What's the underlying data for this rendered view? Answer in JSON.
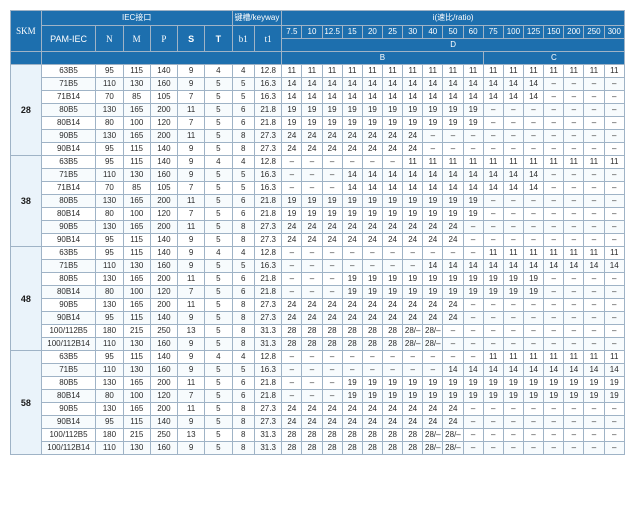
{
  "header": {
    "skm": "SKM",
    "iec": "IEC接口",
    "keyway": "键槽/keyway",
    "ratio_title": "i(速比/ratio)",
    "cols": [
      "PAM-IEC",
      "N",
      "M",
      "P",
      "S",
      "T",
      "b1",
      "t1"
    ],
    "ratios": [
      "7.5",
      "10",
      "12.5",
      "15",
      "20",
      "25",
      "30",
      "40",
      "50",
      "60",
      "75",
      "100",
      "125",
      "150",
      "200",
      "250",
      "300"
    ],
    "group_D": "D",
    "group_B": "B",
    "group_C": "C"
  },
  "groups": [
    {
      "skm": "28",
      "rows": [
        [
          "63B5",
          "95",
          "115",
          "140",
          "9",
          "4",
          "4",
          "12.8",
          "11",
          "11",
          "11",
          "11",
          "11",
          "11",
          "11",
          "11",
          "11",
          "11",
          "11",
          "11",
          "11",
          "11",
          "11",
          "11",
          "11"
        ],
        [
          "71B5",
          "110",
          "130",
          "160",
          "9",
          "5",
          "5",
          "16.3",
          "14",
          "14",
          "14",
          "14",
          "14",
          "14",
          "14",
          "14",
          "14",
          "14",
          "14",
          "14",
          "14",
          "–",
          "–",
          "–",
          "–"
        ],
        [
          "71B14",
          "70",
          "85",
          "105",
          "7",
          "5",
          "5",
          "16.3",
          "14",
          "14",
          "14",
          "14",
          "14",
          "14",
          "14",
          "14",
          "14",
          "14",
          "14",
          "14",
          "14",
          "–",
          "–",
          "–",
          "–"
        ],
        [
          "80B5",
          "130",
          "165",
          "200",
          "11",
          "5",
          "6",
          "21.8",
          "19",
          "19",
          "19",
          "19",
          "19",
          "19",
          "19",
          "19",
          "19",
          "19",
          "–",
          "–",
          "–",
          "–",
          "–",
          "–",
          "–"
        ],
        [
          "80B14",
          "80",
          "100",
          "120",
          "7",
          "5",
          "6",
          "21.8",
          "19",
          "19",
          "19",
          "19",
          "19",
          "19",
          "19",
          "19",
          "19",
          "19",
          "–",
          "–",
          "–",
          "–",
          "–",
          "–",
          "–"
        ],
        [
          "90B5",
          "130",
          "165",
          "200",
          "11",
          "5",
          "8",
          "27.3",
          "24",
          "24",
          "24",
          "24",
          "24",
          "24",
          "24",
          "–",
          "–",
          "–",
          "–",
          "–",
          "–",
          "–",
          "–",
          "–",
          "–"
        ],
        [
          "90B14",
          "95",
          "115",
          "140",
          "9",
          "5",
          "8",
          "27.3",
          "24",
          "24",
          "24",
          "24",
          "24",
          "24",
          "24",
          "–",
          "–",
          "–",
          "–",
          "–",
          "–",
          "–",
          "–",
          "–",
          "–"
        ]
      ]
    },
    {
      "skm": "38",
      "rows": [
        [
          "63B5",
          "95",
          "115",
          "140",
          "9",
          "4",
          "4",
          "12.8",
          "–",
          "–",
          "–",
          "–",
          "–",
          "–",
          "11",
          "11",
          "11",
          "11",
          "11",
          "11",
          "11",
          "11",
          "11",
          "11",
          "11"
        ],
        [
          "71B5",
          "110",
          "130",
          "160",
          "9",
          "5",
          "5",
          "16.3",
          "–",
          "–",
          "–",
          "14",
          "14",
          "14",
          "14",
          "14",
          "14",
          "14",
          "14",
          "14",
          "14",
          "–",
          "–",
          "–",
          "–"
        ],
        [
          "71B14",
          "70",
          "85",
          "105",
          "7",
          "5",
          "5",
          "16.3",
          "–",
          "–",
          "–",
          "14",
          "14",
          "14",
          "14",
          "14",
          "14",
          "14",
          "14",
          "14",
          "14",
          "–",
          "–",
          "–",
          "–"
        ],
        [
          "80B5",
          "130",
          "165",
          "200",
          "11",
          "5",
          "6",
          "21.8",
          "19",
          "19",
          "19",
          "19",
          "19",
          "19",
          "19",
          "19",
          "19",
          "19",
          "–",
          "–",
          "–",
          "–",
          "–",
          "–",
          "–"
        ],
        [
          "80B14",
          "80",
          "100",
          "120",
          "7",
          "5",
          "6",
          "21.8",
          "19",
          "19",
          "19",
          "19",
          "19",
          "19",
          "19",
          "19",
          "19",
          "19",
          "–",
          "–",
          "–",
          "–",
          "–",
          "–",
          "–"
        ],
        [
          "90B5",
          "130",
          "165",
          "200",
          "11",
          "5",
          "8",
          "27.3",
          "24",
          "24",
          "24",
          "24",
          "24",
          "24",
          "24",
          "24",
          "24",
          "–",
          "–",
          "–",
          "–",
          "–",
          "–",
          "–",
          "–"
        ],
        [
          "90B14",
          "95",
          "115",
          "140",
          "9",
          "5",
          "8",
          "27.3",
          "24",
          "24",
          "24",
          "24",
          "24",
          "24",
          "24",
          "24",
          "24",
          "–",
          "–",
          "–",
          "–",
          "–",
          "–",
          "–",
          "–"
        ]
      ]
    },
    {
      "skm": "48",
      "rows": [
        [
          "63B5",
          "95",
          "115",
          "140",
          "9",
          "4",
          "4",
          "12.8",
          "–",
          "–",
          "–",
          "–",
          "–",
          "–",
          "–",
          "–",
          "–",
          "–",
          "11",
          "11",
          "11",
          "11",
          "11",
          "11",
          "11"
        ],
        [
          "71B5",
          "110",
          "130",
          "160",
          "9",
          "5",
          "5",
          "16.3",
          "–",
          "–",
          "–",
          "–",
          "–",
          "–",
          "–",
          "14",
          "14",
          "14",
          "14",
          "14",
          "14",
          "14",
          "14",
          "14",
          "14"
        ],
        [
          "80B5",
          "130",
          "165",
          "200",
          "11",
          "5",
          "6",
          "21.8",
          "–",
          "–",
          "–",
          "19",
          "19",
          "19",
          "19",
          "19",
          "19",
          "19",
          "19",
          "19",
          "19",
          "–",
          "–",
          "–",
          "–"
        ],
        [
          "80B14",
          "80",
          "100",
          "120",
          "7",
          "5",
          "6",
          "21.8",
          "–",
          "–",
          "–",
          "19",
          "19",
          "19",
          "19",
          "19",
          "19",
          "19",
          "19",
          "19",
          "19",
          "–",
          "–",
          "–",
          "–"
        ],
        [
          "90B5",
          "130",
          "165",
          "200",
          "11",
          "5",
          "8",
          "27.3",
          "24",
          "24",
          "24",
          "24",
          "24",
          "24",
          "24",
          "24",
          "24",
          "–",
          "–",
          "–",
          "–",
          "–",
          "–",
          "–",
          "–"
        ],
        [
          "90B14",
          "95",
          "115",
          "140",
          "9",
          "5",
          "8",
          "27.3",
          "24",
          "24",
          "24",
          "24",
          "24",
          "24",
          "24",
          "24",
          "24",
          "–",
          "–",
          "–",
          "–",
          "–",
          "–",
          "–",
          "–"
        ],
        [
          "100/112B5",
          "180",
          "215",
          "250",
          "13",
          "5",
          "8",
          "31.3",
          "28",
          "28",
          "28",
          "28",
          "28",
          "28",
          "28/–",
          "28/–",
          "–",
          "–",
          "–",
          "–",
          "–",
          "–",
          "–",
          "–",
          "–"
        ],
        [
          "100/112B14",
          "110",
          "130",
          "160",
          "9",
          "5",
          "8",
          "31.3",
          "28",
          "28",
          "28",
          "28",
          "28",
          "28",
          "28/–",
          "28/–",
          "–",
          "–",
          "–",
          "–",
          "–",
          "–",
          "–",
          "–",
          "–"
        ]
      ]
    },
    {
      "skm": "58",
      "rows": [
        [
          "63B5",
          "95",
          "115",
          "140",
          "9",
          "4",
          "4",
          "12.8",
          "–",
          "–",
          "–",
          "–",
          "–",
          "–",
          "–",
          "–",
          "–",
          "–",
          "11",
          "11",
          "11",
          "11",
          "11",
          "11",
          "11"
        ],
        [
          "71B5",
          "110",
          "130",
          "160",
          "9",
          "5",
          "5",
          "16.3",
          "–",
          "–",
          "–",
          "–",
          "–",
          "–",
          "–",
          "–",
          "14",
          "14",
          "14",
          "14",
          "14",
          "14",
          "14",
          "14",
          "14"
        ],
        [
          "80B5",
          "130",
          "165",
          "200",
          "11",
          "5",
          "6",
          "21.8",
          "–",
          "–",
          "–",
          "19",
          "19",
          "19",
          "19",
          "19",
          "19",
          "19",
          "19",
          "19",
          "19",
          "19",
          "19",
          "19",
          "19"
        ],
        [
          "80B14",
          "80",
          "100",
          "120",
          "7",
          "5",
          "6",
          "21.8",
          "–",
          "–",
          "–",
          "19",
          "19",
          "19",
          "19",
          "19",
          "19",
          "19",
          "19",
          "19",
          "19",
          "19",
          "19",
          "19",
          "19"
        ],
        [
          "90B5",
          "130",
          "165",
          "200",
          "11",
          "5",
          "8",
          "27.3",
          "24",
          "24",
          "24",
          "24",
          "24",
          "24",
          "24",
          "24",
          "24",
          "–",
          "–",
          "–",
          "–",
          "–",
          "–",
          "–",
          "–"
        ],
        [
          "90B14",
          "95",
          "115",
          "140",
          "9",
          "5",
          "8",
          "27.3",
          "24",
          "24",
          "24",
          "24",
          "24",
          "24",
          "24",
          "24",
          "24",
          "–",
          "–",
          "–",
          "–",
          "–",
          "–",
          "–",
          "–"
        ],
        [
          "100/112B5",
          "180",
          "215",
          "250",
          "13",
          "5",
          "8",
          "31.3",
          "28",
          "28",
          "28",
          "28",
          "28",
          "28",
          "28",
          "28/–",
          "28/–",
          "–",
          "–",
          "–",
          "–",
          "–",
          "–",
          "–",
          "–"
        ],
        [
          "100/112B14",
          "110",
          "130",
          "160",
          "9",
          "5",
          "8",
          "31.3",
          "28",
          "28",
          "28",
          "28",
          "28",
          "28",
          "28",
          "28/–",
          "28/–",
          "–",
          "–",
          "–",
          "–",
          "–",
          "–",
          "–",
          "–"
        ]
      ]
    }
  ]
}
